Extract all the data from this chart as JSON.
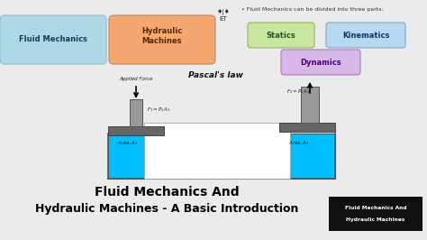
{
  "bg_color": "#ebebeb",
  "title_line1": "Fluid Mechanics And",
  "title_line2": "Hydraulic Machines - A Basic Introduction",
  "title_color": "#000000",
  "box1_text": "Fluid Mechanics",
  "box1_color": "#add8e6",
  "box1_ec": "#7fbfcf",
  "box2_text": "Hydraulic\nMachines",
  "box2_color": "#f4a870",
  "box2_ec": "#c4845a",
  "statics_color": "#c8e6a0",
  "statics_ec": "#90b860",
  "kinematics_color": "#b8d8f0",
  "kinematics_ec": "#80a8c0",
  "dynamics_color": "#d8b8e8",
  "dynamics_ec": "#a880b8",
  "bullet_text": "Fluid Mechanics can be divided into three parts:",
  "pascals_text": "Pascal's law",
  "applied_force_text": "Applied Force",
  "fluid_color": "#00bfff",
  "piston_color": "#999999",
  "piston_dark": "#666666",
  "corner_box_bg": "#111111",
  "corner_box_text1": "Fluid Mechanics And",
  "corner_box_text2": "Hydraulic Machines"
}
